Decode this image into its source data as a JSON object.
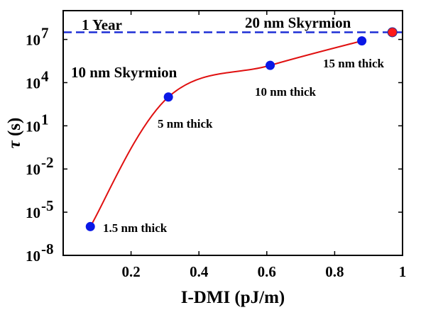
{
  "chart_data": {
    "type": "line",
    "title": "",
    "xlabel": "I-DMI (pJ/m)",
    "ylabel_symbol": "τ",
    "ylabel_unit": " (s)",
    "xlim": [
      0,
      1
    ],
    "ylim_log10": [
      -8,
      9
    ],
    "x_ticks": [
      {
        "value": 0.2,
        "label": "0.2"
      },
      {
        "value": 0.4,
        "label": "0.4"
      },
      {
        "value": 0.6,
        "label": "0.6"
      },
      {
        "value": 0.8,
        "label": "0.8"
      },
      {
        "value": 1.0,
        "label": "1"
      }
    ],
    "y_ticks": [
      {
        "exp": -8,
        "base": "10",
        "sup": "-8"
      },
      {
        "exp": -5,
        "base": "10",
        "sup": "-5"
      },
      {
        "exp": -2,
        "base": "10",
        "sup": "-2"
      },
      {
        "exp": 1,
        "base": "10",
        "sup": "1"
      },
      {
        "exp": 4,
        "base": "10",
        "sup": "4"
      },
      {
        "exp": 7,
        "base": "10",
        "sup": "7"
      }
    ],
    "reference_line": {
      "label": "1 Year",
      "log10_value": 7.5,
      "color": "#1f2fd6"
    },
    "series": [
      {
        "name": "10 nm Skyrmion",
        "color": "#e01010",
        "marker_color": "#0a18e6",
        "points": [
          {
            "x": 0.08,
            "log10_y": -6.0,
            "label": "1.5 nm thick"
          },
          {
            "x": 0.31,
            "log10_y": 3.0,
            "label": "5 nm thick"
          },
          {
            "x": 0.61,
            "log10_y": 5.2,
            "label": "10 nm thick"
          },
          {
            "x": 0.88,
            "log10_y": 6.9,
            "label": "15 nm thick"
          }
        ]
      },
      {
        "name": "20 nm Skyrmion",
        "marker_color": "#ff1a1a",
        "points": [
          {
            "x": 0.97,
            "log10_y": 7.5
          }
        ]
      }
    ]
  }
}
